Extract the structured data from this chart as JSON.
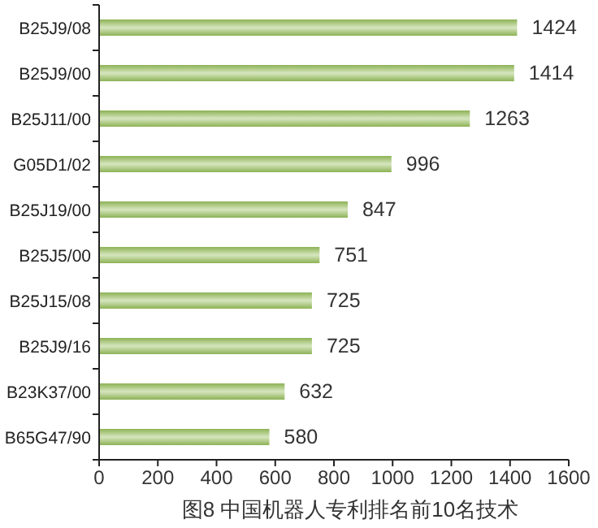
{
  "chart_data": {
    "type": "bar",
    "orientation": "horizontal",
    "title": "图8  中国机器人专利排名前10名技术",
    "categories": [
      "B25J9/08",
      "B25J9/00",
      "B25J11/00",
      "G05D1/02",
      "B25J19/00",
      "B25J5/00",
      "B25J15/08",
      "B25J9/16",
      "B23K37/00",
      "B65G47/90"
    ],
    "values": [
      1424,
      1414,
      1263,
      996,
      847,
      751,
      725,
      725,
      632,
      580
    ],
    "color": "#8db255",
    "xlim": [
      0,
      1600
    ],
    "xticks": [
      0,
      200,
      400,
      600,
      800,
      1000,
      1200,
      1400,
      1600
    ],
    "data_labels": true
  }
}
